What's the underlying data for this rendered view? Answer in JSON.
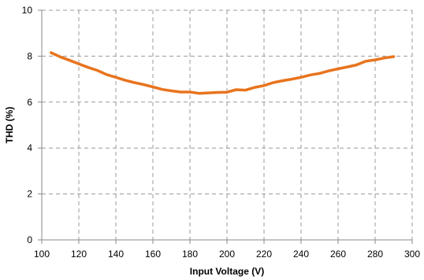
{
  "chart_data": {
    "type": "line",
    "xlabel": "Input Voltage (V)",
    "ylabel": "THD (%)",
    "xlim": [
      100,
      300
    ],
    "ylim": [
      0,
      10
    ],
    "xticks": [
      100,
      120,
      140,
      160,
      180,
      200,
      220,
      240,
      260,
      280,
      300
    ],
    "yticks": [
      0,
      2,
      4,
      6,
      8,
      10
    ],
    "grid": true,
    "legend": "none",
    "series": [
      {
        "color": "#E8741E",
        "x": [
          105,
          110,
          115,
          120,
          125,
          130,
          135,
          140,
          145,
          150,
          155,
          160,
          165,
          170,
          175,
          180,
          185,
          190,
          195,
          200,
          205,
          210,
          215,
          220,
          225,
          230,
          235,
          240,
          245,
          250,
          255,
          260,
          265,
          270,
          275,
          280,
          285,
          290
        ],
        "y": [
          8.15,
          7.97,
          7.82,
          7.66,
          7.51,
          7.38,
          7.2,
          7.08,
          6.95,
          6.85,
          6.76,
          6.66,
          6.55,
          6.49,
          6.44,
          6.44,
          6.38,
          6.4,
          6.42,
          6.43,
          6.54,
          6.52,
          6.64,
          6.72,
          6.85,
          6.93,
          7.0,
          7.08,
          7.18,
          7.25,
          7.36,
          7.45,
          7.53,
          7.62,
          7.78,
          7.84,
          7.92,
          7.98
        ]
      }
    ]
  }
}
